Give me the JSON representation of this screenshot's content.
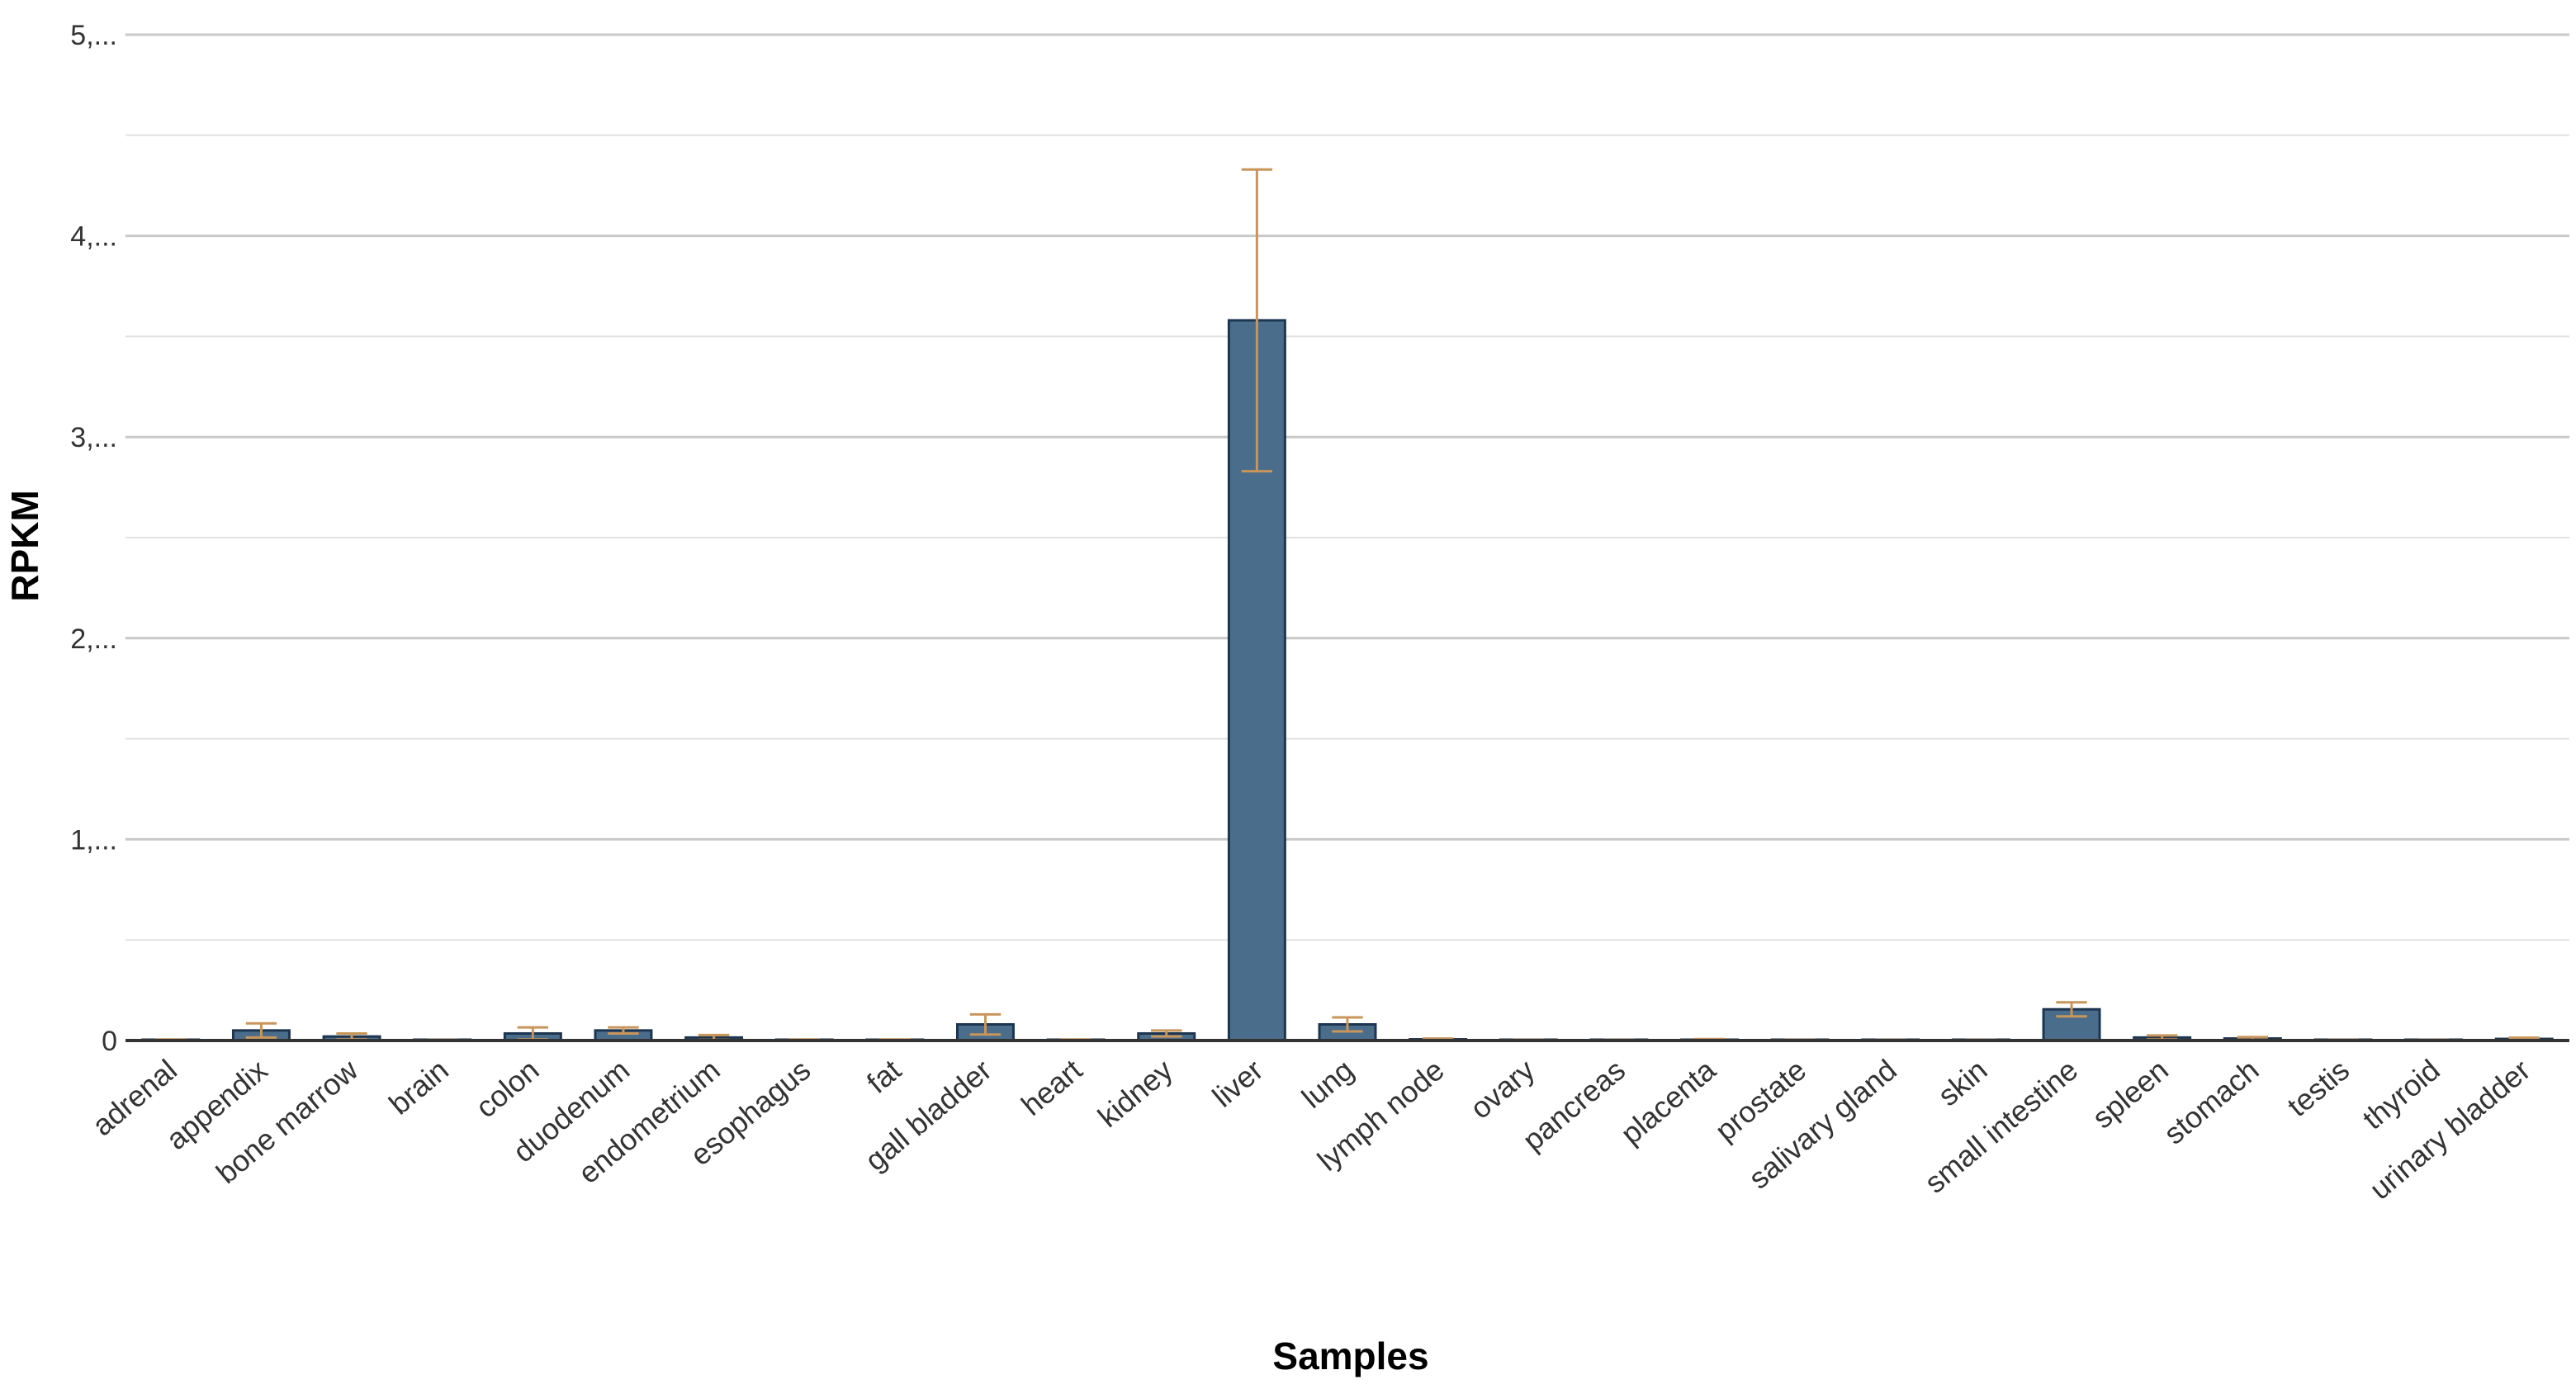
{
  "chart_data": {
    "type": "bar",
    "title": "",
    "xlabel": "Samples",
    "ylabel": "RPKM",
    "ylim": [
      0,
      5
    ],
    "grid": true,
    "legend": "none",
    "y_tick_values": [
      0,
      1,
      2,
      3,
      4,
      5
    ],
    "y_tick_labels": [
      "0",
      "1,...",
      "2,...",
      "3,...",
      "4,...",
      "5,..."
    ],
    "categories": [
      "adrenal",
      "appendix",
      "bone marrow",
      "brain",
      "colon",
      "duodenum",
      "endometrium",
      "esophagus",
      "fat",
      "gall bladder",
      "heart",
      "kidney",
      "liver",
      "lung",
      "lymph node",
      "ovary",
      "pancreas",
      "placenta",
      "prostate",
      "salivary gland",
      "skin",
      "small intestine",
      "spleen",
      "stomach",
      "testis",
      "thyroid",
      "urinary bladder"
    ],
    "values": [
      0.003,
      0.05,
      0.02,
      0.002,
      0.035,
      0.05,
      0.015,
      0.003,
      0.003,
      0.08,
      0.003,
      0.035,
      3.58,
      0.08,
      0.006,
      0.002,
      0.002,
      0.004,
      0.002,
      0.002,
      0.002,
      0.155,
      0.015,
      0.01,
      0.002,
      0.002,
      0.008
    ],
    "errors": [
      0.002,
      0.035,
      0.015,
      0.001,
      0.03,
      0.015,
      0.012,
      0.002,
      0.002,
      0.05,
      0.002,
      0.015,
      0.75,
      0.035,
      0.004,
      0.001,
      0.001,
      0.003,
      0.001,
      0.001,
      0.001,
      0.035,
      0.01,
      0.007,
      0.001,
      0.001,
      0.006
    ],
    "colors": {
      "bar_fill": "#4a6d8c",
      "bar_stroke": "#1e3550",
      "error_bar": "#c8955a"
    }
  }
}
